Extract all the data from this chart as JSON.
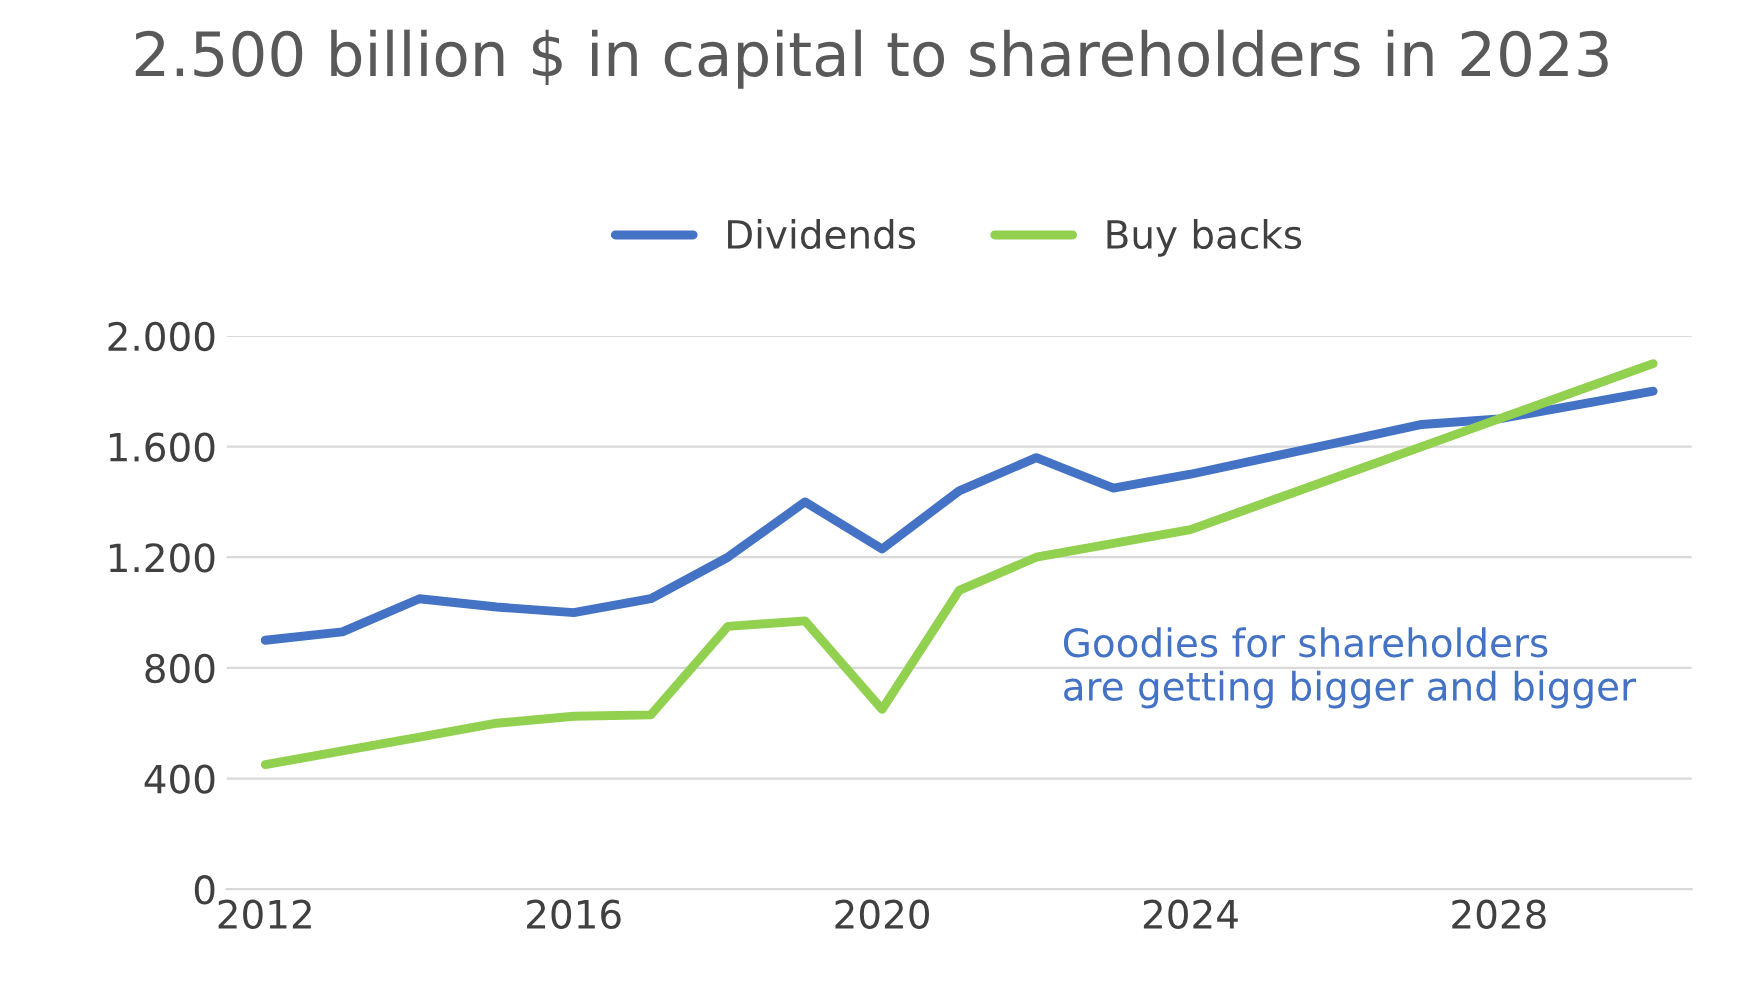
{
  "chart_data": {
    "type": "line",
    "title": "2.500 billion $ in capital to shareholders in 2023",
    "x": [
      2012,
      2013,
      2014,
      2015,
      2016,
      2017,
      2018,
      2019,
      2020,
      2021,
      2022,
      2023,
      2024,
      2025,
      2026,
      2027,
      2028,
      2029,
      2030
    ],
    "series": [
      {
        "name": "Dividends",
        "color": "#4472c4",
        "values": [
          900,
          930,
          1050,
          1020,
          1000,
          1050,
          1200,
          1400,
          1230,
          1440,
          1560,
          1450,
          1500,
          1560,
          1620,
          1680,
          1700,
          1750,
          1800
        ]
      },
      {
        "name": "Buy backs",
        "color": "#92d050",
        "values": [
          450,
          500,
          550,
          600,
          625,
          630,
          950,
          970,
          650,
          1080,
          1200,
          1250,
          1300,
          1400,
          1500,
          1600,
          1700,
          1800,
          1900
        ]
      }
    ],
    "xlim": [
      2011.5,
      2030.5
    ],
    "xticks": [
      2012,
      2016,
      2020,
      2024,
      2028
    ],
    "ylim": [
      0,
      2000
    ],
    "yticks": [
      {
        "value": 0,
        "label": "0"
      },
      {
        "value": 400,
        "label": "400"
      },
      {
        "value": 800,
        "label": "800"
      },
      {
        "value": 1200,
        "label": "1.200"
      },
      {
        "value": 1600,
        "label": "1.600"
      },
      {
        "value": 2000,
        "label": "2.000"
      }
    ],
    "grid": "y",
    "legend": "top",
    "marker": "none",
    "line_style": "solid",
    "annotations": [
      "Goodies for shareholders\nare getting bigger and bigger"
    ]
  }
}
